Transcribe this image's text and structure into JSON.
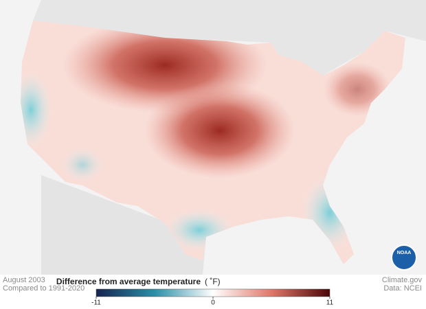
{
  "header": {
    "date": "August 2003",
    "baseline": "Compared to 1991-2020"
  },
  "credits": {
    "site": "Climate.gov",
    "source": "Data: NCEI",
    "logo": "NOAA"
  },
  "colorbar": {
    "title": "Difference from average temperature",
    "unit": "( ˚F)",
    "range": [
      -11,
      11
    ],
    "ticks": [
      -11,
      0,
      11
    ]
  }
}
